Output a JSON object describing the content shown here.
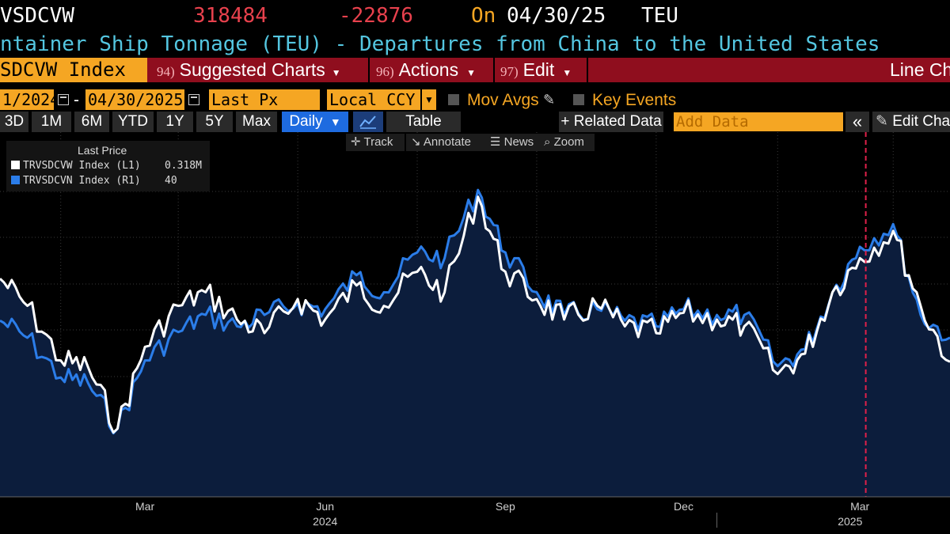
{
  "quote": {
    "ticker": "VSDCVW",
    "last": "318484",
    "change": "-22876",
    "on_label": "On",
    "date": "04/30/25",
    "unit": "TEU"
  },
  "title": "ntainer Ship Tonnage (TEU) - Departures from China to the United States",
  "menubar": {
    "security": "SDCVW Index",
    "items": [
      {
        "num": "94)",
        "label": "Suggested Charts"
      },
      {
        "num": "96)",
        "label": "Actions"
      },
      {
        "num": "97)",
        "label": "Edit"
      }
    ],
    "chart_type": "Line Ch"
  },
  "daterow": {
    "start_date": "1/2024",
    "dash": "-",
    "end_date": "04/30/2025",
    "field": "Last Px",
    "currency": "Local CCY",
    "mov_avgs": "Mov Avgs",
    "key_events": "Key Events"
  },
  "periods": [
    "3D",
    "1M",
    "6M",
    "YTD",
    "1Y",
    "5Y",
    "Max"
  ],
  "periodrow": {
    "frequency": "Daily",
    "table": "Table",
    "related_data": "+ Related Data",
    "add_data_placeholder": "Add Data",
    "collapse": "«",
    "edit_chart": "Edit Cha"
  },
  "tools": {
    "track": "Track",
    "annotate": "Annotate",
    "news": "News",
    "zoom": "Zoom"
  },
  "legend": {
    "header": "Last Price",
    "rows": [
      {
        "name": "TRVSDCVW Index  (L1)",
        "value": "0.318M",
        "color": "#ffffff"
      },
      {
        "name": "TRVSDCVN Index  (R1)",
        "value": "40",
        "color": "#2b7de9"
      }
    ]
  },
  "colors": {
    "background": "#000000",
    "area_fill": "#0c1d3c",
    "white_series": "#ffffff",
    "blue_series": "#2b7de9",
    "accent_orange": "#f5a623",
    "menu_red": "#8f0e1e",
    "negative_red": "#e8414d",
    "title_cyan": "#54c6e0",
    "event_line": "#e0204a"
  },
  "chart_data": {
    "type": "line",
    "x_tick_labels": [
      "Mar",
      "Jun",
      "Sep",
      "Dec",
      "Mar"
    ],
    "x_year_labels": [
      "2024",
      "2025"
    ],
    "series": [
      {
        "name": "TRVSDCVW Index (L1)",
        "x": [
          "2024-01-01",
          "2024-01-15",
          "2024-02-01",
          "2024-02-15",
          "2024-03-01",
          "2024-03-15",
          "2024-04-01",
          "2024-04-15",
          "2024-05-01",
          "2024-05-15",
          "2024-06-01",
          "2024-06-15",
          "2024-07-01",
          "2024-07-15",
          "2024-08-01",
          "2024-08-15",
          "2024-09-01",
          "2024-09-15",
          "2024-10-01",
          "2024-10-15",
          "2024-11-01",
          "2024-11-15",
          "2024-12-01",
          "2024-12-15",
          "2025-01-01",
          "2025-01-15",
          "2025-02-01",
          "2025-02-15",
          "2025-03-01",
          "2025-03-15",
          "2025-04-01",
          "2025-04-15",
          "2025-04-30"
        ],
        "values": [
          0.44,
          0.4,
          0.32,
          0.31,
          0.22,
          0.34,
          0.4,
          0.42,
          0.38,
          0.36,
          0.41,
          0.38,
          0.43,
          0.4,
          0.45,
          0.42,
          0.56,
          0.45,
          0.41,
          0.38,
          0.4,
          0.37,
          0.36,
          0.39,
          0.38,
          0.37,
          0.3,
          0.33,
          0.42,
          0.47,
          0.51,
          0.4,
          0.318
        ]
      },
      {
        "name": "TRVSDCVN Index (R1)",
        "x": [
          "2024-01-01",
          "2024-01-15",
          "2024-02-01",
          "2024-02-15",
          "2024-03-01",
          "2024-03-15",
          "2024-04-01",
          "2024-04-15",
          "2024-05-01",
          "2024-05-15",
          "2024-06-01",
          "2024-06-15",
          "2024-07-01",
          "2024-07-15",
          "2024-08-01",
          "2024-08-15",
          "2024-09-01",
          "2024-09-15",
          "2024-10-01",
          "2024-10-15",
          "2024-11-01",
          "2024-11-15",
          "2024-12-01",
          "2024-12-15",
          "2025-01-01",
          "2025-01-15",
          "2025-02-01",
          "2025-02-15",
          "2025-03-01",
          "2025-03-15",
          "2025-04-01",
          "2025-04-15",
          "2025-04-30"
        ],
        "values": [
          43,
          40,
          33,
          32,
          24,
          36,
          41,
          44,
          42,
          44,
          46,
          45,
          51,
          48,
          55,
          54,
          66,
          55,
          48,
          44,
          45,
          43,
          42,
          45,
          44,
          44,
          35,
          38,
          48,
          56,
          60,
          44,
          40
        ]
      }
    ],
    "event_marker_date": "2025-03-18",
    "grid": true,
    "legend_placement": "top-left"
  }
}
